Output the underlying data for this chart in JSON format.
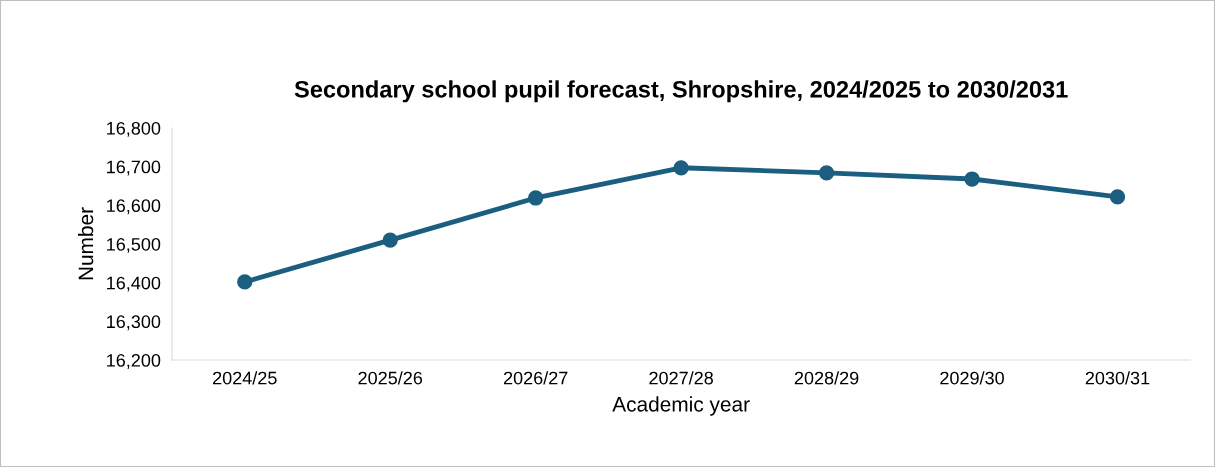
{
  "chart_data": {
    "type": "line",
    "title": "Secondary school pupil forecast, Shropshire, 2024/2025 to 2030/2031",
    "xlabel": "Academic year",
    "ylabel": "Number",
    "categories": [
      "2024/25",
      "2025/26",
      "2026/27",
      "2027/28",
      "2028/29",
      "2029/30",
      "2030/31"
    ],
    "series": [
      {
        "color": "#1b5e80",
        "values": [
          16402,
          16510,
          16619,
          16697,
          16684,
          16668,
          16622
        ]
      }
    ],
    "ylim": [
      16200,
      16800
    ],
    "yticks": [
      {
        "value": 16200,
        "label": "16,200"
      },
      {
        "value": 16300,
        "label": "16,300"
      },
      {
        "value": 16400,
        "label": "16,400"
      },
      {
        "value": 16500,
        "label": "16,500"
      },
      {
        "value": 16600,
        "label": "16,600"
      },
      {
        "value": 16700,
        "label": "16,700"
      },
      {
        "value": 16800,
        "label": "16,800"
      }
    ],
    "grid": false,
    "legend": false,
    "marker": "circle",
    "line_style": "solid"
  }
}
